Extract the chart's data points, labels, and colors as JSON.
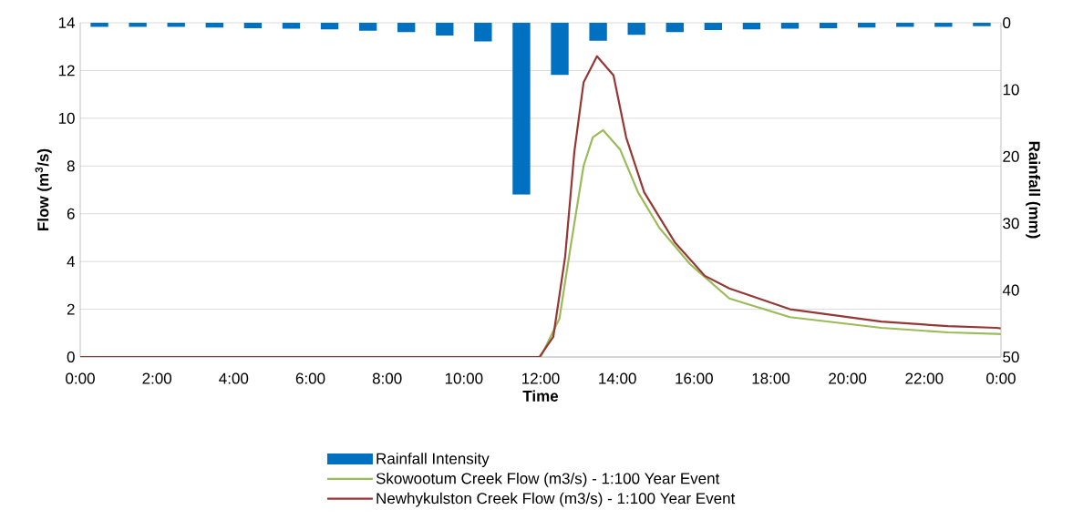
{
  "chart_data": {
    "type": "line",
    "xlabel": "Time",
    "ylabel": "Flow (m$^{3}$/s)",
    "y2label": "Rainfall (mm)",
    "xlim": [
      0,
      24
    ],
    "xticks": [
      {
        "value": 0,
        "label": "0:00"
      },
      {
        "value": 2,
        "label": "2:00"
      },
      {
        "value": 4,
        "label": "4:00"
      },
      {
        "value": 6,
        "label": "6:00"
      },
      {
        "value": 8,
        "label": "8:00"
      },
      {
        "value": 10,
        "label": "10:00"
      },
      {
        "value": 12,
        "label": "12:00"
      },
      {
        "value": 14,
        "label": "14:00"
      },
      {
        "value": 16,
        "label": "16:00"
      },
      {
        "value": 18,
        "label": "18:00"
      },
      {
        "value": 20,
        "label": "20:00"
      },
      {
        "value": 22,
        "label": "22:00"
      },
      {
        "value": 24,
        "label": "0:00"
      }
    ],
    "ylim": [
      0,
      14
    ],
    "yticks": [
      0,
      2,
      4,
      6,
      8,
      10,
      12,
      14
    ],
    "y2lim": [
      50,
      0
    ],
    "y2ticks": [
      0,
      10,
      20,
      30,
      40,
      50
    ],
    "grid": "y",
    "legend": "bottom",
    "series": [
      {
        "name": "Rainfall Intensity",
        "type": "bar",
        "axis": "y2",
        "color": "#0070c0",
        "x": [
          0.5,
          1.5,
          2.5,
          3.5,
          4.5,
          5.5,
          6.5,
          7.5,
          8.5,
          9.5,
          10.5,
          11.5,
          12.5,
          13.5,
          14.5,
          15.5,
          16.5,
          17.5,
          18.5,
          19.5,
          20.5,
          21.5,
          22.5,
          23.5
        ],
        "values": [
          0.6,
          0.6,
          0.6,
          0.7,
          0.8,
          0.9,
          1.0,
          1.2,
          1.4,
          1.9,
          2.8,
          25.7,
          7.8,
          2.7,
          1.8,
          1.4,
          1.1,
          1.0,
          0.9,
          0.8,
          0.7,
          0.6,
          0.6,
          0.5
        ]
      },
      {
        "name": "Skowootum Creek Flow (m3/s) - 1:100 Year Event",
        "color": "#9bbb59",
        "x": [
          0,
          12.0,
          12.49,
          12.8,
          13.12,
          13.36,
          13.63,
          14.07,
          14.54,
          15.1,
          15.89,
          16.92,
          18.5,
          20.88,
          22.62,
          23.88,
          24
        ],
        "values": [
          0,
          0,
          1.6,
          4.8,
          8.0,
          9.2,
          9.5,
          8.7,
          6.9,
          5.4,
          3.9,
          2.45,
          1.67,
          1.22,
          1.03,
          0.97,
          0.96
        ]
      },
      {
        "name": "Newhykulston Creek Flow (m3/s) - 1:100 Year Event",
        "color": "#953735",
        "x": [
          0,
          11.97,
          12.33,
          12.64,
          12.88,
          13.12,
          13.47,
          13.9,
          14.23,
          14.7,
          15.5,
          16.28,
          16.92,
          18.5,
          20.88,
          22.62,
          23.88,
          24
        ],
        "values": [
          0,
          0,
          0.84,
          4.2,
          8.6,
          11.5,
          12.6,
          11.8,
          9.2,
          6.9,
          4.8,
          3.4,
          2.87,
          2.0,
          1.48,
          1.29,
          1.22,
          1.2
        ]
      }
    ]
  }
}
